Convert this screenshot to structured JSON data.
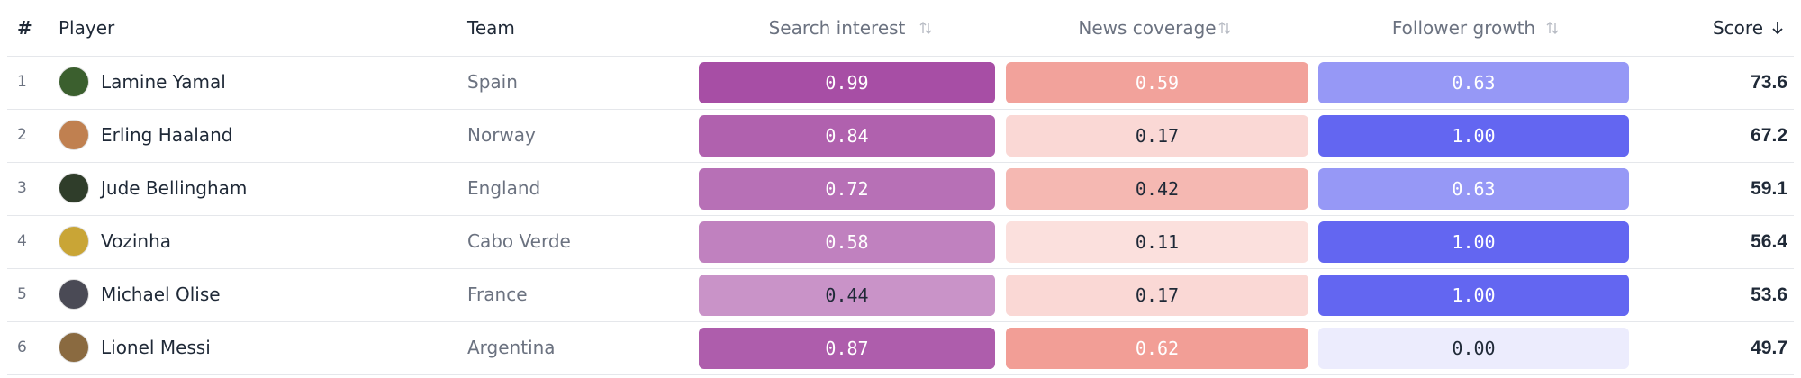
{
  "table": {
    "headers": [
      "#",
      "Player",
      "Team",
      "Search interest",
      "News coverage",
      "Follower growth",
      "Score"
    ],
    "rows": [
      [
        "1",
        "Lamine Yamal",
        "Spain",
        "0.99",
        "0.59",
        "0.63",
        "73.6"
      ],
      [
        "2",
        "Erling Haaland",
        "Norway",
        "0.84",
        "0.17",
        "1.00",
        "67.2"
      ],
      [
        "3",
        "Jude Bellingham",
        "England",
        "0.72",
        "0.42",
        "0.63",
        "59.1"
      ],
      [
        "4",
        "Vozinha",
        "Cabo Verde",
        "0.58",
        "0.11",
        "1.00",
        "56.4"
      ],
      [
        "5",
        "Michael Olise",
        "France",
        "0.44",
        "0.17",
        "1.00",
        "53.6"
      ],
      [
        "6",
        "Lionel Messi",
        "Argentina",
        "0.87",
        "0.62",
        "0.00",
        "49.7"
      ]
    ]
  }
}
